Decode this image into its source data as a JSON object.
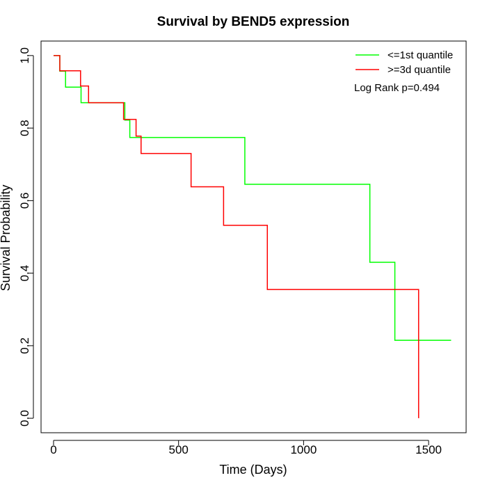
{
  "chart_data": {
    "type": "line",
    "title": "Survival by BEND5 expression",
    "xlabel": "Time (Days)",
    "ylabel": "Survival Probability",
    "xlim": [
      -50,
      1650
    ],
    "ylim": [
      -0.04,
      1.04
    ],
    "x_ticks": [
      0,
      500,
      1000,
      1500
    ],
    "y_ticks": [
      0.0,
      0.2,
      0.4,
      0.6,
      0.8,
      1.0
    ],
    "x_tick_labels": [
      "0",
      "500",
      "1000",
      "1500"
    ],
    "y_tick_labels": [
      "0.0",
      "0.2",
      "0.4",
      "0.6",
      "0.8",
      "1.0"
    ],
    "grid": false,
    "legend_position": "top-right",
    "annotation": "Log Rank p=0.494",
    "series": [
      {
        "name": "<=1st quantile",
        "color": "#00ff00",
        "step": true,
        "x": [
          0,
          25,
          48,
          110,
          145,
          285,
          305,
          765,
          1265,
          1365,
          1590
        ],
        "y": [
          1.0,
          0.957,
          0.913,
          0.87,
          0.87,
          0.822,
          0.774,
          0.645,
          0.43,
          0.215,
          0.215
        ]
      },
      {
        "name": ">=3d quantile",
        "color": "#ff0000",
        "step": true,
        "x": [
          0,
          25,
          108,
          140,
          280,
          330,
          350,
          550,
          680,
          855,
          1460,
          1460
        ],
        "y": [
          1.0,
          0.958,
          0.916,
          0.87,
          0.824,
          0.778,
          0.73,
          0.638,
          0.532,
          0.355,
          0.355,
          0.0
        ]
      }
    ]
  }
}
